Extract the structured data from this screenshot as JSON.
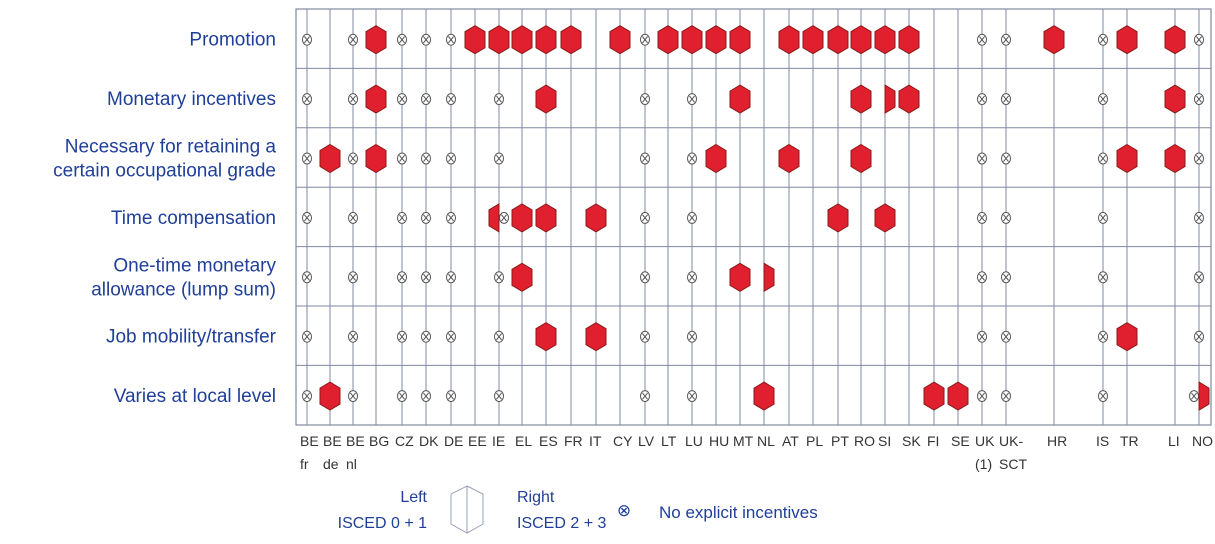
{
  "chart_data": {
    "type": "table",
    "rows": [
      {
        "label_lines": [
          "Promotion"
        ]
      },
      {
        "label_lines": [
          "Monetary incentives"
        ]
      },
      {
        "label_lines": [
          "Necessary for retaining a",
          "certain occupational grade"
        ]
      },
      {
        "label_lines": [
          "Time compensation"
        ]
      },
      {
        "label_lines": [
          "One-time monetary",
          "allowance (lump sum)"
        ]
      },
      {
        "label_lines": [
          "Job mobility/transfer"
        ]
      },
      {
        "label_lines": [
          "Varies at local level"
        ]
      }
    ],
    "countries": [
      {
        "code": "BE",
        "sub": "fr"
      },
      {
        "code": "BE",
        "sub": "de"
      },
      {
        "code": "BE",
        "sub": "nl"
      },
      {
        "code": "BG",
        "sub": ""
      },
      {
        "code": "CZ",
        "sub": ""
      },
      {
        "code": "DK",
        "sub": ""
      },
      {
        "code": "DE",
        "sub": ""
      },
      {
        "code": "EE",
        "sub": ""
      },
      {
        "code": "IE",
        "sub": ""
      },
      {
        "code": "EL",
        "sub": ""
      },
      {
        "code": "ES",
        "sub": ""
      },
      {
        "code": "FR",
        "sub": ""
      },
      {
        "code": "IT",
        "sub": ""
      },
      {
        "code": "CY",
        "sub": ""
      },
      {
        "code": "LV",
        "sub": ""
      },
      {
        "code": "LT",
        "sub": ""
      },
      {
        "code": "LU",
        "sub": ""
      },
      {
        "code": "HU",
        "sub": ""
      },
      {
        "code": "MT",
        "sub": ""
      },
      {
        "code": "NL",
        "sub": ""
      },
      {
        "code": "AT",
        "sub": ""
      },
      {
        "code": "PL",
        "sub": ""
      },
      {
        "code": "PT",
        "sub": ""
      },
      {
        "code": "RO",
        "sub": ""
      },
      {
        "code": "SI",
        "sub": ""
      },
      {
        "code": "SK",
        "sub": ""
      },
      {
        "code": "FI",
        "sub": ""
      },
      {
        "code": "SE",
        "sub": ""
      },
      {
        "code": "UK",
        "sub": "(1)"
      },
      {
        "code": "UK-",
        "sub": "SCT"
      },
      {
        "code": "HR",
        "sub": ""
      },
      {
        "code": "IS",
        "sub": ""
      },
      {
        "code": "TR",
        "sub": ""
      },
      {
        "code": "LI",
        "sub": ""
      },
      {
        "code": "NO",
        "sub": ""
      }
    ],
    "cell_codes": {
      "B": "both ISCED 0+1 and ISCED 2+3",
      "L": "left: ISCED 0+1",
      "R": "right: ISCED 2+3",
      "X": "no explicit incentives",
      "XR": "no explicit incentives (ISCED 0+1), right: ISCED 2+3",
      "LX": "left: ISCED 0+1, no explicit incentives (ISCED 2+3)",
      "": "no entry"
    },
    "matrix": [
      [
        "X",
        "",
        "X",
        "B",
        "X",
        "X",
        "X",
        "B",
        "B",
        "B",
        "B",
        "B",
        "",
        "B",
        "X",
        "B",
        "B",
        "B",
        "B",
        "",
        "B",
        "B",
        "B",
        "B",
        "B",
        "B",
        "",
        "",
        "X",
        "X",
        "B",
        "X",
        "B",
        "B",
        "X"
      ],
      [
        "X",
        "",
        "X",
        "B",
        "X",
        "X",
        "X",
        "",
        "X",
        "",
        "B",
        "",
        "",
        "",
        "X",
        "",
        "X",
        "",
        "B",
        "",
        "",
        "",
        "",
        "B",
        "R",
        "B",
        "",
        "",
        "X",
        "X",
        "",
        "X",
        "",
        "B",
        "X"
      ],
      [
        "X",
        "B",
        "X",
        "B",
        "X",
        "X",
        "X",
        "",
        "X",
        "",
        "",
        "",
        "",
        "",
        "X",
        "",
        "X",
        "B",
        "",
        "",
        "B",
        "",
        "",
        "B",
        "",
        "",
        "",
        "",
        "X",
        "X",
        "",
        "X",
        "B",
        "B",
        "X"
      ],
      [
        "X",
        "",
        "X",
        "",
        "X",
        "X",
        "X",
        "",
        "LX",
        "B",
        "B",
        "",
        "B",
        "",
        "X",
        "",
        "X",
        "",
        "",
        "",
        "",
        "",
        "B",
        "",
        "B",
        "",
        "",
        "",
        "X",
        "X",
        "",
        "X",
        "",
        "",
        "X"
      ],
      [
        "X",
        "",
        "X",
        "",
        "X",
        "X",
        "X",
        "",
        "X",
        "B",
        "",
        "",
        "",
        "",
        "X",
        "",
        "X",
        "",
        "B",
        "R",
        "",
        "",
        "",
        "",
        "",
        "",
        "",
        "",
        "X",
        "X",
        "",
        "X",
        "",
        "",
        "X"
      ],
      [
        "X",
        "",
        "X",
        "",
        "X",
        "X",
        "X",
        "",
        "X",
        "",
        "B",
        "",
        "B",
        "",
        "X",
        "",
        "X",
        "",
        "",
        "",
        "",
        "",
        "",
        "",
        "",
        "",
        "",
        "",
        "X",
        "X",
        "",
        "X",
        "B",
        "",
        "X"
      ],
      [
        "X",
        "B",
        "X",
        "",
        "X",
        "X",
        "X",
        "",
        "X",
        "",
        "",
        "",
        "",
        "",
        "X",
        "",
        "X",
        "",
        "",
        "B",
        "",
        "",
        "",
        "",
        "",
        "",
        "B",
        "B",
        "X",
        "X",
        "",
        "X",
        "",
        "",
        "XR"
      ]
    ],
    "legend": {
      "left_line1": "Left",
      "left_line2": "ISCED 0 + 1",
      "right_line1": "Right",
      "right_line2": "ISCED 2 + 3",
      "no_incentive_symbol": "⊗",
      "no_incentive_text": "No explicit incentives"
    },
    "colors": {
      "filled": "#e0202e",
      "filled_stroke": "#8a1a1a",
      "grid": "#8088a0",
      "row_label": "#1f3f98",
      "legend_text": "#1f3f98"
    }
  }
}
